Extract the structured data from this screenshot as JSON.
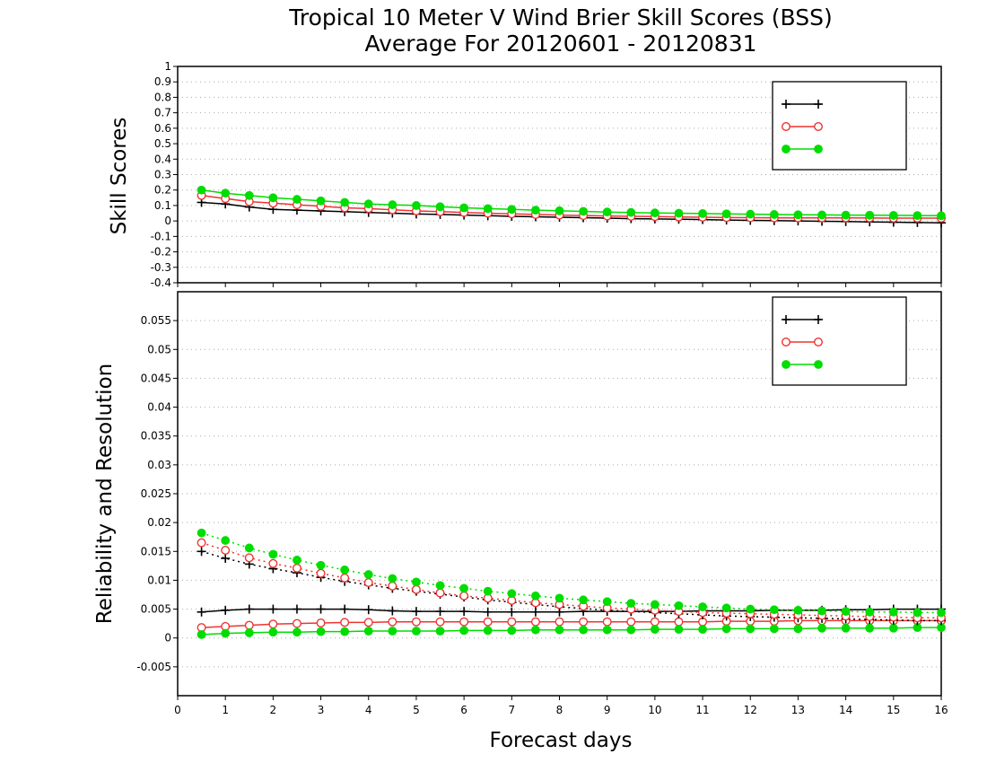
{
  "title_line1": "Tropical 10 Meter V Wind Brier Skill Scores (BSS)",
  "title_line2": "Average For 20120601 - 20120831",
  "xlabel": "Forecast days",
  "colors": {
    "series1": "#000000",
    "series2": "#ee3333",
    "series3": "#00dd00",
    "grid": "#aaaaaa"
  },
  "chart_data": [
    {
      "type": "line",
      "ylabel": "Skill Scores",
      "xlim": [
        0,
        16
      ],
      "ylim": [
        -0.4,
        1
      ],
      "yticks": [
        "1",
        "0.9",
        "0.8",
        "0.7",
        "0.6",
        "0.5",
        "0.4",
        "0.3",
        "0.2",
        "0.1",
        "0",
        "-0.1",
        "-0.2",
        "-0.3",
        "-0.4"
      ],
      "xticks": [
        "0",
        "1",
        "2",
        "3",
        "4",
        "5",
        "6",
        "7",
        "8",
        "9",
        "10",
        "11",
        "12",
        "13",
        "14",
        "15",
        "16"
      ],
      "grid": true,
      "legend_position": "top-right",
      "x": [
        0.5,
        1,
        1.5,
        2,
        2.5,
        3,
        3.5,
        4,
        4.5,
        5,
        5.5,
        6,
        6.5,
        7,
        7.5,
        8,
        8.5,
        9,
        9.5,
        10,
        10.5,
        11,
        11.5,
        12,
        12.5,
        13,
        13.5,
        14,
        14.5,
        15,
        15.5,
        16
      ],
      "series": [
        {
          "name": "",
          "marker": "plus",
          "style": "solid",
          "values": [
            0.12,
            0.11,
            0.09,
            0.075,
            0.07,
            0.065,
            0.06,
            0.055,
            0.05,
            0.045,
            0.042,
            0.038,
            0.034,
            0.03,
            0.027,
            0.024,
            0.021,
            0.018,
            0.015,
            0.013,
            0.011,
            0.009,
            0.006,
            0.004,
            0.002,
            0.0,
            -0.002,
            -0.004,
            -0.006,
            -0.008,
            -0.01,
            -0.012
          ]
        },
        {
          "name": "",
          "marker": "open-circle",
          "style": "solid",
          "values": [
            0.165,
            0.145,
            0.125,
            0.115,
            0.105,
            0.095,
            0.085,
            0.08,
            0.072,
            0.065,
            0.06,
            0.055,
            0.05,
            0.046,
            0.042,
            0.038,
            0.035,
            0.032,
            0.03,
            0.028,
            0.026,
            0.024,
            0.022,
            0.021,
            0.02,
            0.02,
            0.02,
            0.02,
            0.019,
            0.018,
            0.018,
            0.018
          ]
        },
        {
          "name": "",
          "marker": "filled-circle",
          "style": "solid",
          "values": [
            0.2,
            0.18,
            0.165,
            0.15,
            0.14,
            0.13,
            0.12,
            0.11,
            0.105,
            0.1,
            0.092,
            0.085,
            0.08,
            0.075,
            0.07,
            0.066,
            0.062,
            0.058,
            0.055,
            0.052,
            0.05,
            0.048,
            0.046,
            0.044,
            0.042,
            0.04,
            0.039,
            0.038,
            0.037,
            0.036,
            0.035,
            0.034
          ]
        }
      ]
    },
    {
      "type": "line",
      "ylabel": "Reliability and Resolution",
      "xlim": [
        0,
        16
      ],
      "ylim": [
        -0.01,
        0.06
      ],
      "yticks": [
        "0.055",
        "0.05",
        "0.045",
        "0.04",
        "0.035",
        "0.03",
        "0.025",
        "0.02",
        "0.015",
        "0.01",
        "0.005",
        "0",
        "-0.005"
      ],
      "xticks": [
        "0",
        "1",
        "2",
        "3",
        "4",
        "5",
        "6",
        "7",
        "8",
        "9",
        "10",
        "11",
        "12",
        "13",
        "14",
        "15",
        "16"
      ],
      "grid": true,
      "legend_position": "top-right",
      "x": [
        0.5,
        1,
        1.5,
        2,
        2.5,
        3,
        3.5,
        4,
        4.5,
        5,
        5.5,
        6,
        6.5,
        7,
        7.5,
        8,
        8.5,
        9,
        9.5,
        10,
        10.5,
        11,
        11.5,
        12,
        12.5,
        13,
        13.5,
        14,
        14.5,
        15,
        15.5,
        16
      ],
      "series": [
        {
          "name": "",
          "marker": "plus",
          "style": "solid",
          "values": [
            0.0045,
            0.0048,
            0.005,
            0.005,
            0.005,
            0.005,
            0.005,
            0.0049,
            0.0047,
            0.0046,
            0.0046,
            0.0046,
            0.0045,
            0.0045,
            0.0045,
            0.0045,
            0.0046,
            0.0046,
            0.0046,
            0.0046,
            0.0046,
            0.0047,
            0.0047,
            0.0047,
            0.0048,
            0.0048,
            0.0048,
            0.0049,
            0.0049,
            0.005,
            0.005,
            0.005
          ]
        },
        {
          "name": "",
          "marker": "open-circle",
          "style": "solid",
          "values": [
            0.0018,
            0.002,
            0.0022,
            0.0024,
            0.0025,
            0.0026,
            0.0027,
            0.0027,
            0.0028,
            0.0028,
            0.0028,
            0.0028,
            0.0028,
            0.0028,
            0.0028,
            0.0028,
            0.0028,
            0.0028,
            0.0028,
            0.0028,
            0.0028,
            0.0028,
            0.0029,
            0.0029,
            0.0029,
            0.003,
            0.003,
            0.003,
            0.003,
            0.003,
            0.003,
            0.003
          ]
        },
        {
          "name": "",
          "marker": "filled-circle",
          "style": "solid",
          "values": [
            0.0006,
            0.0008,
            0.0009,
            0.001,
            0.001,
            0.0011,
            0.0011,
            0.0012,
            0.0012,
            0.0012,
            0.0012,
            0.0013,
            0.0013,
            0.0013,
            0.0014,
            0.0014,
            0.0014,
            0.0014,
            0.0014,
            0.0015,
            0.0015,
            0.0015,
            0.0016,
            0.0016,
            0.0016,
            0.0016,
            0.0017,
            0.0017,
            0.0017,
            0.0017,
            0.0018,
            0.0018
          ]
        },
        {
          "name": "",
          "marker": "plus",
          "style": "dotted",
          "values": [
            0.015,
            0.0138,
            0.0128,
            0.012,
            0.0113,
            0.0105,
            0.0098,
            0.0092,
            0.0086,
            0.0081,
            0.0076,
            0.0071,
            0.0066,
            0.0062,
            0.0058,
            0.0054,
            0.0051,
            0.0048,
            0.0046,
            0.0044,
            0.0042,
            0.004,
            0.0038,
            0.0037,
            0.0036,
            0.0035,
            0.0034,
            0.0033,
            0.0032,
            0.0031,
            0.003,
            0.003
          ]
        },
        {
          "name": "",
          "marker": "open-circle",
          "style": "dotted",
          "values": [
            0.0165,
            0.0152,
            0.0139,
            0.0129,
            0.0121,
            0.0112,
            0.0104,
            0.0096,
            0.009,
            0.0084,
            0.0078,
            0.0073,
            0.0069,
            0.0065,
            0.0061,
            0.0058,
            0.0055,
            0.0052,
            0.005,
            0.0048,
            0.0046,
            0.0044,
            0.0043,
            0.0042,
            0.0041,
            0.004,
            0.0039,
            0.0038,
            0.0037,
            0.0036,
            0.0035,
            0.0035
          ]
        },
        {
          "name": "",
          "marker": "filled-circle",
          "style": "dotted",
          "values": [
            0.0182,
            0.0169,
            0.0156,
            0.0145,
            0.0135,
            0.0126,
            0.0118,
            0.011,
            0.0103,
            0.0097,
            0.0091,
            0.0086,
            0.0081,
            0.0077,
            0.0073,
            0.0069,
            0.0066,
            0.0063,
            0.006,
            0.0058,
            0.0056,
            0.0054,
            0.0052,
            0.005,
            0.0049,
            0.0048,
            0.0047,
            0.0046,
            0.0045,
            0.0045,
            0.0044,
            0.0044
          ]
        }
      ]
    }
  ]
}
